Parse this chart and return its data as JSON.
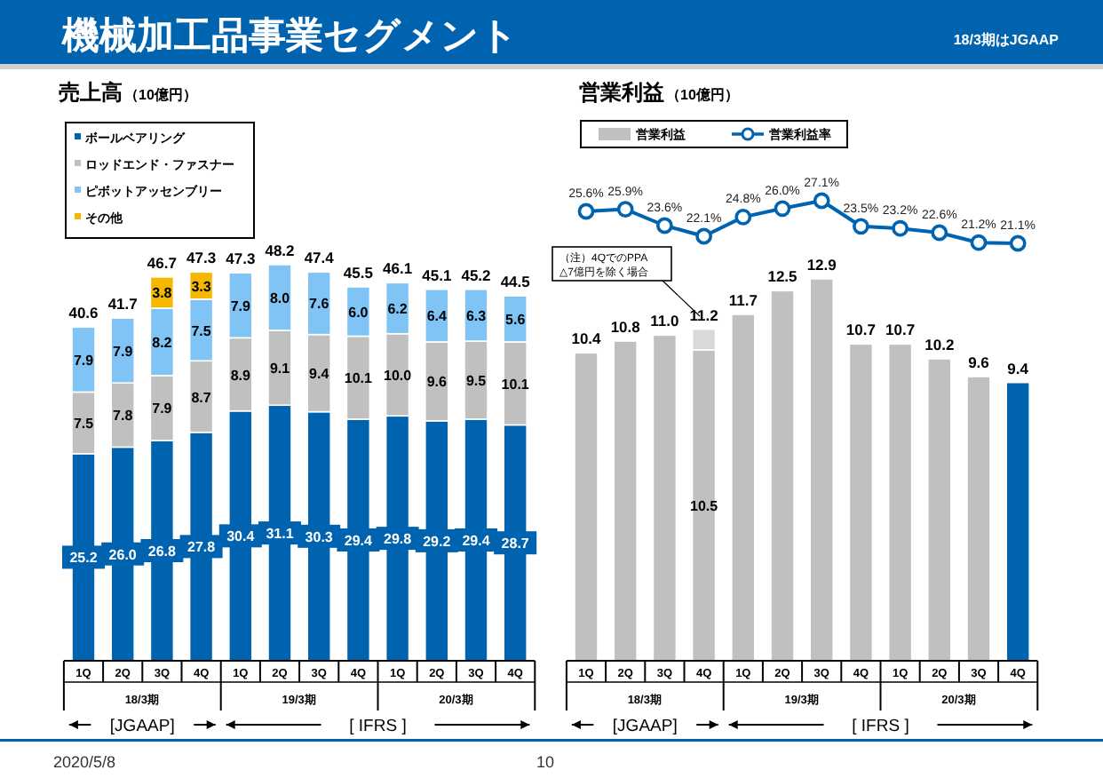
{
  "chart_data": [
    {
      "type": "bar",
      "title": "売上高",
      "subtitle": "（10億円）",
      "stacked": true,
      "legend": "top left",
      "categories": [
        "1Q",
        "2Q",
        "3Q",
        "4Q",
        "1Q",
        "2Q",
        "3Q",
        "4Q",
        "1Q",
        "2Q",
        "3Q",
        "4Q"
      ],
      "annotations": [
        "機械加工品事業セグメント",
        "18/3期はJGAAP",
        "2020/5/8",
        "10",
        "18/3期",
        "19/3期",
        "20/3期",
        "[JGAAP]",
        "[ IFRS ]"
      ],
      "series": [
        {
          "name": "ボールベアリング",
          "color": "#0063b0",
          "values": [
            25.2,
            26.0,
            26.8,
            27.8,
            30.4,
            31.1,
            30.3,
            29.4,
            29.8,
            29.2,
            29.4,
            28.7
          ],
          "value_labels": [
            "25.2",
            "26.0",
            "26.8",
            "27.8",
            "30.4",
            "31.1",
            "30.3",
            "29.4",
            "29.8",
            "29.2",
            "29.4",
            "28.7"
          ]
        },
        {
          "name": "ロッドエンド・ファスナー",
          "color": "#c0c0c0",
          "values": [
            7.5,
            7.8,
            7.9,
            8.7,
            8.9,
            9.1,
            9.4,
            10.1,
            10.0,
            9.6,
            9.5,
            10.1
          ],
          "value_labels": [
            "7.5",
            "7.8",
            "7.9",
            "8.7",
            "8.9",
            "9.1",
            "9.4",
            "10.1",
            "10.0",
            "9.6",
            "9.5",
            "10.1"
          ]
        },
        {
          "name": "ピボットアッセンブリー",
          "color": "#7fc4f5",
          "values": [
            7.9,
            7.9,
            8.2,
            7.5,
            7.9,
            8.0,
            7.6,
            6.0,
            6.2,
            6.4,
            6.3,
            5.6
          ],
          "value_labels": [
            "7.9",
            "7.9",
            "8.2",
            "7.5",
            "7.9",
            "8.0",
            "7.6",
            "6.0",
            "6.2",
            "6.4",
            "6.3",
            "5.6"
          ]
        },
        {
          "name": "その他",
          "color": "#f5b800",
          "values": [
            null,
            null,
            3.8,
            3.3,
            null,
            null,
            null,
            null,
            null,
            null,
            null,
            null
          ],
          "value_labels": [
            null,
            null,
            "3.8",
            "3.3",
            null,
            null,
            null,
            null,
            null,
            null,
            null,
            null
          ]
        }
      ],
      "totals": [
        "40.6",
        "41.7",
        "46.7",
        "47.3",
        "47.3",
        "48.2",
        "47.4",
        "45.5",
        "46.1",
        "45.1",
        "45.2",
        "44.5"
      ]
    },
    {
      "type": "bar",
      "stacked": true,
      "legend": "top left",
      "categories": [
        "1Q",
        "2Q",
        "3Q",
        "4Q",
        "1Q",
        "2Q",
        "3Q",
        "4Q",
        "1Q",
        "2Q",
        "3Q",
        "4Q"
      ],
      "annotations": [
        "18/3期",
        "19/3期",
        "20/3期",
        "[JGAAP]",
        "[ IFRS ]",
        "（注）4QでのPPA △7億円を除く場合"
      ],
      "series": [
        {
          "name": "営業利益",
          "color": "#c0c0c0",
          "colors": [
            "#c0c0c0",
            "#c0c0c0",
            "#c0c0c0",
            "#c0c0c0",
            "#c0c0c0",
            "#c0c0c0",
            "#c0c0c0",
            "#c0c0c0",
            "#c0c0c0",
            "#c0c0c0",
            "#c0c0c0",
            "#0063b0"
          ],
          "values": [
            10.4,
            10.8,
            11.0,
            10.5,
            11.7,
            12.5,
            12.9,
            10.7,
            10.7,
            10.2,
            9.6,
            9.4
          ],
          "value_labels": [
            "10.4",
            "10.8",
            "11.0",
            "10.5",
            "11.7",
            "12.5",
            "12.9",
            "10.7",
            "10.7",
            "10.2",
            "9.6",
            "9.4"
          ]
        },
        {
          "color": "#d9d9d9",
          "values": [
            null,
            null,
            null,
            0.7,
            null,
            null,
            null,
            null,
            null,
            null,
            null,
            null
          ]
        }
      ],
      "totals": [
        null,
        null,
        null,
        "11.2",
        null,
        null,
        null,
        null,
        null,
        null,
        null,
        null
      ]
    },
    {
      "type": "line",
      "title": "営業利益",
      "subtitle": "（10億円）",
      "legend": "top",
      "tick_labels": false,
      "marker": "circle",
      "categories": [
        null,
        null,
        null,
        null,
        null,
        null,
        null,
        null,
        null,
        null,
        null,
        null
      ],
      "series": [
        {
          "name": "営業利益率",
          "color": "#0063b0",
          "values": [
            25.6,
            25.9,
            23.6,
            22.1,
            24.8,
            26.0,
            27.1,
            23.5,
            23.2,
            22.6,
            21.2,
            21.1
          ],
          "value_labels": [
            "25.6%",
            "25.9%",
            "23.6%",
            "22.1%",
            "24.8%",
            "26.0%",
            "27.1%",
            "23.5%",
            "23.2%",
            "22.6%",
            "21.2%",
            "21.1%"
          ]
        }
      ]
    }
  ]
}
